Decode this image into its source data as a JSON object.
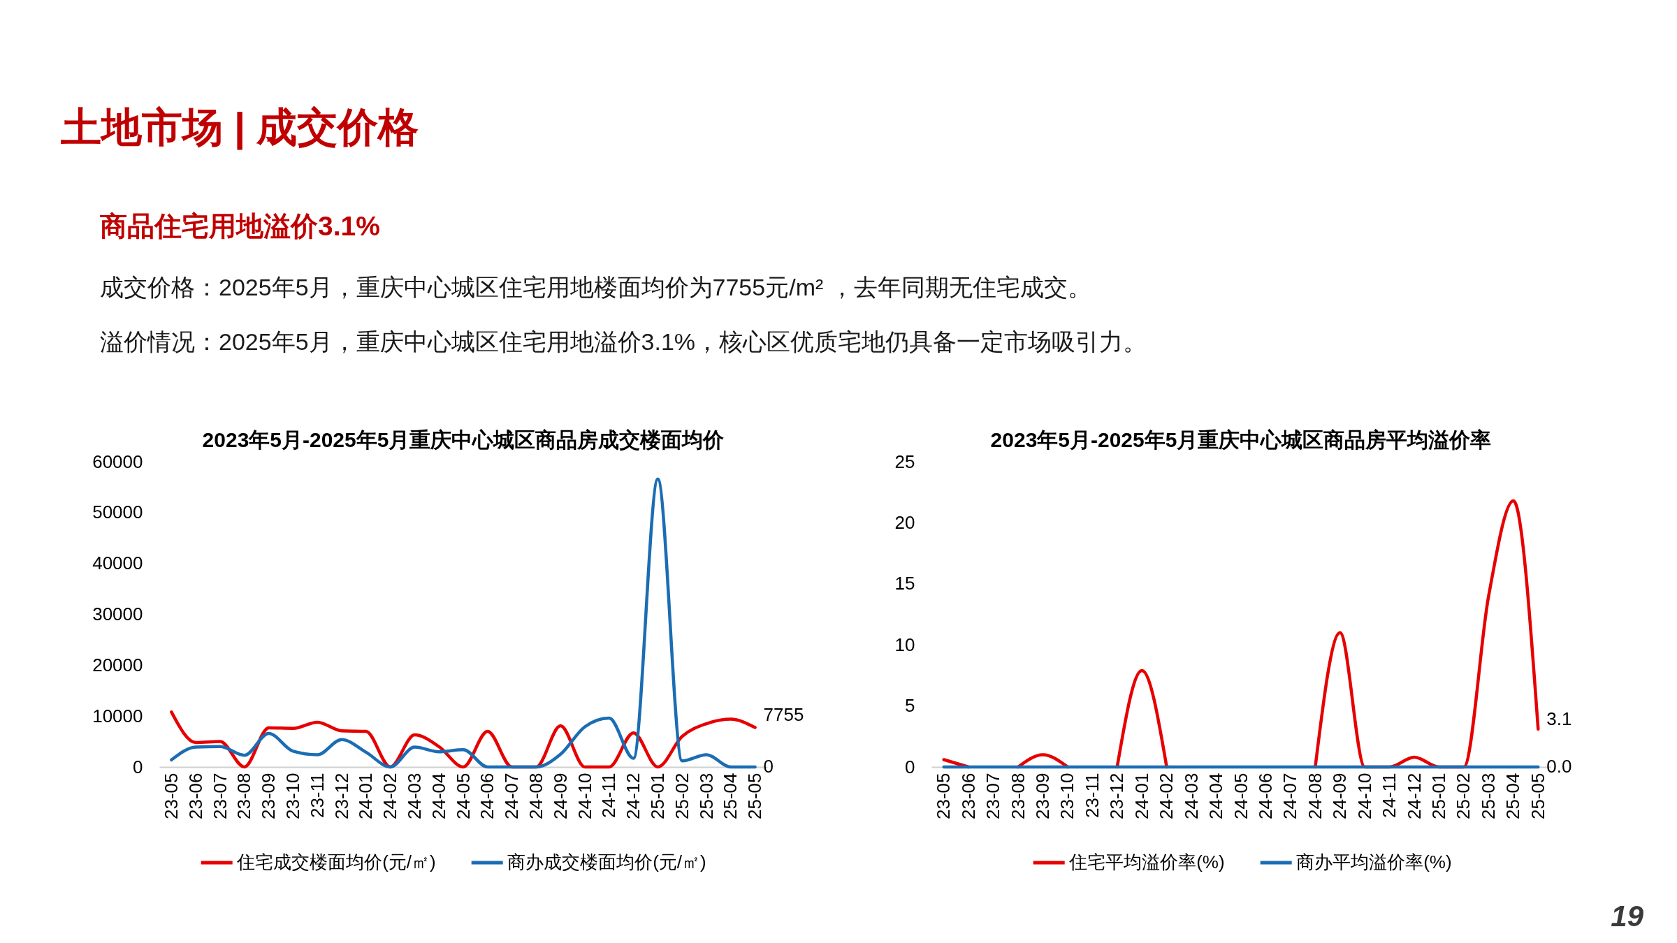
{
  "chart_data": [
    {
      "type": "other",
      "title": "土地市场 | 成交价格",
      "subtitle": "商品住宅用地溢价3.1%",
      "annotations": [
        "成交价格：2025年5月，重庆中心城区住宅用地楼面均价为7755元/m² ，去年同期无住宅成交。",
        "溢价情况：2025年5月，重庆中心城区住宅用地溢价3.1%，核心区优质宅地仍具备一定市场吸引力。",
        "19"
      ]
    },
    {
      "type": "line",
      "title": "2023年5月-2025年5月重庆中心城区商品房成交楼面均价",
      "categories": [
        "23-05",
        "23-06",
        "23-07",
        "23-08",
        "23-09",
        "23-10",
        "23-11",
        "23-12",
        "24-01",
        "24-02",
        "24-03",
        "24-04",
        "24-05",
        "24-06",
        "24-07",
        "24-08",
        "24-09",
        "24-10",
        "24-11",
        "24-12",
        "25-01",
        "25-02",
        "25-03",
        "25-04",
        "25-05"
      ],
      "series": [
        {
          "name": "住宅成交楼面均价(元/㎡)",
          "color": "#e60000",
          "values": [
            10800,
            4800,
            5000,
            0,
            7700,
            7600,
            8800,
            7100,
            7000,
            0,
            6300,
            4000,
            0,
            7000,
            0,
            0,
            8100,
            0,
            0,
            6700,
            0,
            6000,
            8500,
            9400,
            7755
          ],
          "value_labels": [
            null,
            null,
            null,
            null,
            null,
            null,
            null,
            null,
            null,
            null,
            null,
            null,
            null,
            null,
            null,
            null,
            null,
            null,
            null,
            null,
            null,
            null,
            null,
            null,
            "7755"
          ]
        },
        {
          "name": "商办成交楼面均价(元/㎡)",
          "color": "#1b6db3",
          "values": [
            1400,
            3900,
            4000,
            2300,
            6600,
            3100,
            2400,
            5400,
            2900,
            0,
            3900,
            3000,
            3400,
            0,
            0,
            0,
            2500,
            7900,
            9600,
            1700,
            56600,
            1200,
            2400,
            0,
            0
          ],
          "value_labels": [
            null,
            null,
            null,
            null,
            null,
            null,
            null,
            null,
            null,
            null,
            null,
            null,
            null,
            null,
            null,
            null,
            null,
            null,
            null,
            null,
            null,
            null,
            null,
            null,
            "0"
          ]
        }
      ],
      "ylim": [
        0,
        60000
      ],
      "yticks": [
        0,
        10000,
        20000,
        30000,
        40000,
        50000,
        60000
      ],
      "legend": "bottom"
    },
    {
      "type": "line",
      "title": "2023年5月-2025年5月重庆中心城区商品房平均溢价率",
      "categories": [
        "23-05",
        "23-06",
        "23-07",
        "23-08",
        "23-09",
        "23-10",
        "23-11",
        "23-12",
        "24-01",
        "24-02",
        "24-03",
        "24-04",
        "24-05",
        "24-06",
        "24-07",
        "24-08",
        "24-09",
        "24-10",
        "24-11",
        "24-12",
        "25-01",
        "25-02",
        "25-03",
        "25-04",
        "25-05"
      ],
      "series": [
        {
          "name": "住宅平均溢价率(%)",
          "color": "#e60000",
          "values": [
            0.6,
            0,
            null,
            0,
            1.0,
            0,
            null,
            0,
            7.9,
            0,
            null,
            null,
            null,
            null,
            null,
            0,
            11.0,
            0,
            0,
            0.8,
            0,
            0,
            14,
            21.8,
            3.1
          ],
          "value_labels": [
            null,
            null,
            null,
            null,
            null,
            null,
            null,
            null,
            null,
            null,
            null,
            null,
            null,
            null,
            null,
            null,
            null,
            null,
            null,
            null,
            null,
            null,
            null,
            null,
            "3.1"
          ]
        },
        {
          "name": "商办平均溢价率(%)",
          "color": "#1b6db3",
          "values": [
            0,
            0,
            0,
            0,
            0,
            0,
            0,
            0,
            0,
            0,
            0,
            0,
            0,
            0,
            0,
            0,
            0,
            0,
            0,
            0,
            0,
            0,
            0,
            0,
            0
          ],
          "value_labels": [
            null,
            null,
            null,
            null,
            null,
            null,
            null,
            null,
            null,
            null,
            null,
            null,
            null,
            null,
            null,
            null,
            null,
            null,
            null,
            null,
            null,
            null,
            null,
            null,
            "0.0"
          ]
        }
      ],
      "ylim": [
        0,
        25
      ],
      "yticks": [
        0,
        5,
        10,
        15,
        20,
        25
      ],
      "legend": "bottom"
    }
  ]
}
